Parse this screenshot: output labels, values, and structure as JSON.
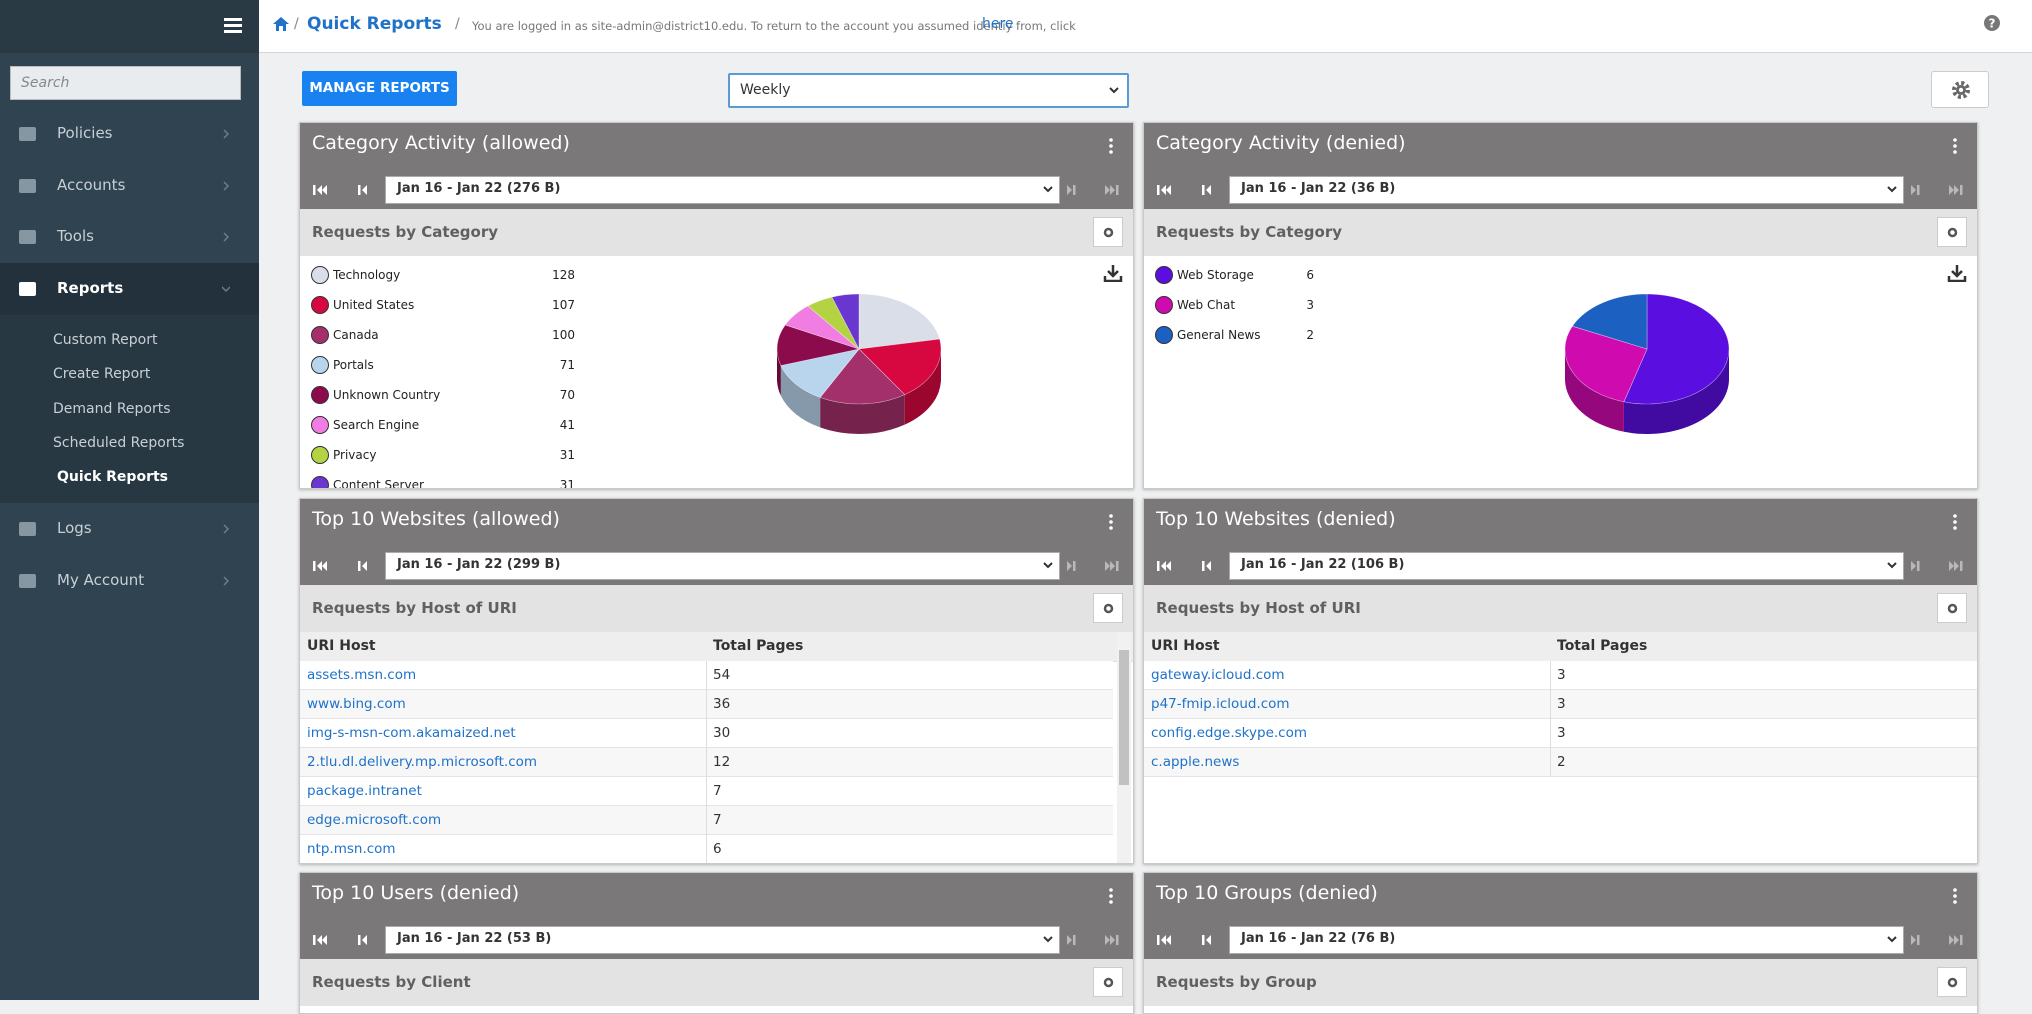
{
  "sidebar": {
    "search": "Search",
    "menu": [
      "Policies",
      "Accounts",
      "Tools",
      "Reports"
    ],
    "submenu": [
      "Custom Report",
      "Create Report",
      "Demand Reports",
      "Scheduled Reports",
      "Quick Reports"
    ],
    "menu_after": [
      "Logs",
      "My Account"
    ]
  },
  "header": {
    "breadcrumb": "Quick Reports",
    "notice": "You are logged in as site-admin@district10.edu. To return to the account you assumed identiy from, click",
    "link": "here"
  },
  "toolbar": {
    "manage_button": "MANAGE REPORTS",
    "period": "Weekly"
  },
  "panels": [
    {
      "title": "Category Activity (allowed)",
      "range": "Jan 16 - Jan 22 (276 B)",
      "subtitle": "Requests by Category",
      "type": "pie",
      "legend": [
        {
          "name": "Technology",
          "value": 128,
          "color": "#d9dee8"
        },
        {
          "name": "United States",
          "value": 107,
          "color": "#d6083f"
        },
        {
          "name": "Canada",
          "value": 100,
          "color": "#a3306b"
        },
        {
          "name": "Portals",
          "value": 71,
          "color": "#b9d5ee"
        },
        {
          "name": "Unknown Country",
          "value": 70,
          "color": "#8c0b4c"
        },
        {
          "name": "Search Engine",
          "value": 41,
          "color": "#f27de2"
        },
        {
          "name": "Privacy",
          "value": 31,
          "color": "#b3d343"
        },
        {
          "name": "Content Server",
          "value": 31,
          "color": "#6a36d0"
        }
      ]
    },
    {
      "title": "Category Activity (denied)",
      "range": "Jan 16 - Jan 22 (36 B)",
      "subtitle": "Requests by Category",
      "type": "pie",
      "legend": [
        {
          "name": "Web Storage",
          "value": 6,
          "color": "#5a0ee0"
        },
        {
          "name": "Web Chat",
          "value": 3,
          "color": "#cf0aae"
        },
        {
          "name": "General News",
          "value": 2,
          "color": "#1c60c2"
        }
      ]
    },
    {
      "title": "Top 10 Websites (allowed)",
      "range": "Jan 16 - Jan 22 (299 B)",
      "subtitle": "Requests by Host of URI",
      "type": "table",
      "columns": [
        "URI Host",
        "Total Pages"
      ],
      "rows": [
        [
          "assets.msn.com",
          54
        ],
        [
          "www.bing.com",
          36
        ],
        [
          "img-s-msn-com.akamaized.net",
          30
        ],
        [
          "2.tlu.dl.delivery.mp.microsoft.com",
          12
        ],
        [
          "package.intranet",
          7
        ],
        [
          "edge.microsoft.com",
          7
        ],
        [
          "ntp.msn.com",
          6
        ]
      ]
    },
    {
      "title": "Top 10 Websites (denied)",
      "range": "Jan 16 - Jan 22 (106 B)",
      "subtitle": "Requests by Host of URI",
      "type": "table",
      "columns": [
        "URI Host",
        "Total Pages"
      ],
      "rows": [
        [
          "gateway.icloud.com",
          3
        ],
        [
          "p47-fmip.icloud.com",
          3
        ],
        [
          "config.edge.skype.com",
          3
        ],
        [
          "c.apple.news",
          2
        ]
      ]
    },
    {
      "title": "Top 10 Users (denied)",
      "range": "Jan 16 - Jan 22 (53 B)",
      "subtitle": "Requests by Client",
      "type": "none"
    },
    {
      "title": "Top 10 Groups (denied)",
      "range": "Jan 16 - Jan 22 (76 B)",
      "subtitle": "Requests by Group",
      "type": "none"
    }
  ]
}
